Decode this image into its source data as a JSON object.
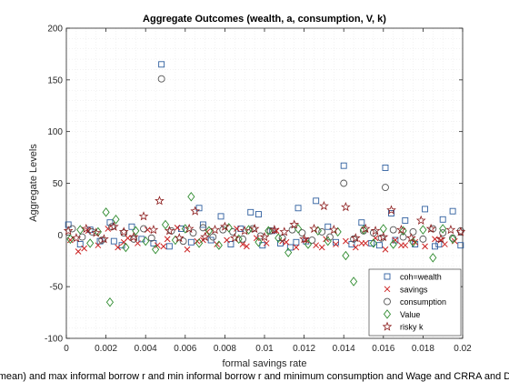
{
  "chart_data": {
    "type": "scatter",
    "title": "Aggregate Outcomes (wealth, a, consumption, V, k)",
    "xlabel": "formal savings rate",
    "ylabel": "Aggregate Levels",
    "footer": "mean) and max informal borrow r and min informal borrow r and minimum consumption and Wage and CRRA and D",
    "xlim": [
      0,
      0.02
    ],
    "ylim": [
      -100,
      200
    ],
    "xticks": [
      0,
      0.002,
      0.004,
      0.006,
      0.008,
      0.01,
      0.012,
      0.014,
      0.016,
      0.018,
      0.02
    ],
    "xticklabels": [
      "0",
      "0.002",
      "0.004",
      "0.006",
      "0.008",
      "0.01",
      "0.012",
      "0.014",
      "0.016",
      "0.018",
      "0.02"
    ],
    "yticks": [
      -100,
      -50,
      0,
      50,
      100,
      150,
      200
    ],
    "yticklabels": [
      "-100",
      "-50",
      "0",
      "50",
      "100",
      "150",
      "200"
    ],
    "grid": true,
    "legend_position": "bottom-right",
    "series": [
      {
        "name": "coh=wealth",
        "marker": "square",
        "color": "#2f5f9f",
        "x": [
          0.0001,
          0.0007,
          0.0012,
          0.0017,
          0.0022,
          0.0028,
          0.0033,
          0.0038,
          0.0044,
          0.0048,
          0.0052,
          0.0058,
          0.0063,
          0.0067,
          0.0073,
          0.0078,
          0.0083,
          0.0088,
          0.0093,
          0.0099,
          0.0104,
          0.0108,
          0.0113,
          0.0117,
          0.0121,
          0.0126,
          0.0132,
          0.0136,
          0.014,
          0.0144,
          0.0149,
          0.0154,
          0.0158,
          0.0161,
          0.0166,
          0.0171,
          0.0176,
          0.0181,
          0.0186,
          0.019,
          0.0195,
          0.0199,
          0.0024,
          0.0069,
          0.0116,
          0.0164,
          0.0188,
          0.0097
        ],
        "y": [
          10,
          -9,
          5,
          -6,
          12,
          -10,
          8,
          -4,
          -8,
          165,
          -11,
          6,
          -7,
          26,
          -5,
          18,
          -9,
          6,
          22,
          -10,
          4,
          -8,
          -12,
          26,
          -6,
          33,
          8,
          -7,
          67,
          -9,
          12,
          -8,
          -10,
          65,
          -5,
          14,
          -9,
          25,
          -11,
          15,
          23,
          -10,
          -6,
          10,
          -7,
          21,
          -9,
          20
        ]
      },
      {
        "name": "savings",
        "marker": "x",
        "color": "#cc2222",
        "x": [
          0.0002,
          0.0006,
          0.0011,
          0.0016,
          0.0021,
          0.0026,
          0.0031,
          0.0036,
          0.0041,
          0.0046,
          0.0051,
          0.0056,
          0.0061,
          0.0066,
          0.0071,
          0.0076,
          0.0081,
          0.0086,
          0.0091,
          0.0096,
          0.0101,
          0.0106,
          0.0111,
          0.0116,
          0.0121,
          0.0126,
          0.0131,
          0.0136,
          0.0141,
          0.0146,
          0.0151,
          0.0156,
          0.0161,
          0.0166,
          0.0171,
          0.0176,
          0.0181,
          0.0186,
          0.0191,
          0.0196,
          0.0009,
          0.0029,
          0.0049,
          0.0069,
          0.0089,
          0.0109,
          0.0129,
          0.0149,
          0.0169,
          0.0189
        ],
        "y": [
          -5,
          -16,
          4,
          -10,
          6,
          -12,
          -3,
          -8,
          5,
          -10,
          -4,
          7,
          -14,
          -6,
          3,
          -9,
          -5,
          6,
          -11,
          -3,
          -8,
          4,
          -7,
          -12,
          -5,
          -10,
          -4,
          -9,
          -6,
          -12,
          -8,
          -3,
          -14,
          -5,
          -10,
          -7,
          -11,
          -4,
          -9,
          -6,
          -13,
          -7,
          -11,
          -5,
          -9,
          -6,
          -12,
          -8,
          -10,
          -5
        ]
      },
      {
        "name": "consumption",
        "marker": "circle",
        "color": "#555555",
        "x": [
          0.0003,
          0.0008,
          0.0013,
          0.0018,
          0.0023,
          0.0029,
          0.0034,
          0.0039,
          0.0043,
          0.0048,
          0.0053,
          0.0059,
          0.0064,
          0.0069,
          0.0074,
          0.0079,
          0.0084,
          0.0089,
          0.0094,
          0.0098,
          0.0103,
          0.0109,
          0.0114,
          0.0119,
          0.0124,
          0.0129,
          0.0133,
          0.014,
          0.0145,
          0.015,
          0.0155,
          0.0159,
          0.0161,
          0.0165,
          0.017,
          0.0175,
          0.018,
          0.0185,
          0.019,
          0.0195,
          0.0199
        ],
        "y": [
          6,
          -2,
          3,
          -5,
          8,
          2,
          -4,
          6,
          -3,
          151,
          4,
          -6,
          2,
          7,
          -2,
          5,
          3,
          -4,
          6,
          -1,
          4,
          -3,
          5,
          2,
          -5,
          3,
          -2,
          50,
          -4,
          4,
          2,
          -3,
          46,
          5,
          -2,
          3,
          -4,
          6,
          2,
          -3,
          4
        ]
      },
      {
        "name": "Value",
        "marker": "diamond",
        "color": "#2e8b2e",
        "x": [
          0.0002,
          0.0007,
          0.0012,
          0.0016,
          0.002,
          0.0022,
          0.0025,
          0.003,
          0.0035,
          0.004,
          0.0045,
          0.005,
          0.0055,
          0.006,
          0.0063,
          0.0067,
          0.0072,
          0.0077,
          0.0082,
          0.0087,
          0.0092,
          0.0097,
          0.0102,
          0.0107,
          0.0112,
          0.0117,
          0.0122,
          0.0127,
          0.0132,
          0.0137,
          0.0141,
          0.0145,
          0.015,
          0.0155,
          0.016,
          0.0165,
          0.017,
          0.0175,
          0.018,
          0.0185,
          0.019,
          0.0195
        ],
        "y": [
          -4,
          5,
          -8,
          3,
          22,
          -65,
          15,
          -12,
          4,
          -6,
          -14,
          10,
          -5,
          6,
          37,
          -8,
          4,
          -10,
          7,
          -4,
          5,
          -7,
          4,
          -3,
          -17,
          6,
          -9,
          4,
          -6,
          3,
          -20,
          -45,
          5,
          -8,
          6,
          -9,
          4,
          -7,
          5,
          -22,
          6,
          -4
        ]
      },
      {
        "name": "risky k",
        "marker": "star",
        "color": "#8b1a1a",
        "x": [
          0.0001,
          0.0005,
          0.001,
          0.0015,
          0.0019,
          0.0024,
          0.0029,
          0.0034,
          0.0039,
          0.0044,
          0.0047,
          0.0052,
          0.0057,
          0.0062,
          0.0065,
          0.007,
          0.0075,
          0.008,
          0.0085,
          0.009,
          0.0095,
          0.01,
          0.0105,
          0.011,
          0.0115,
          0.012,
          0.0125,
          0.013,
          0.0135,
          0.0141,
          0.0146,
          0.0151,
          0.0156,
          0.016,
          0.0164,
          0.0169,
          0.0174,
          0.0179,
          0.0184,
          0.0189,
          0.0194,
          0.0199
        ],
        "y": [
          4,
          -3,
          6,
          2,
          -4,
          8,
          3,
          -2,
          18,
          5,
          33,
          4,
          -3,
          6,
          23,
          -2,
          5,
          8,
          -3,
          4,
          6,
          -2,
          5,
          3,
          10,
          -4,
          6,
          28,
          5,
          27,
          -3,
          6,
          4,
          -2,
          24,
          5,
          -3,
          14,
          6,
          -4,
          5,
          3
        ]
      }
    ]
  }
}
